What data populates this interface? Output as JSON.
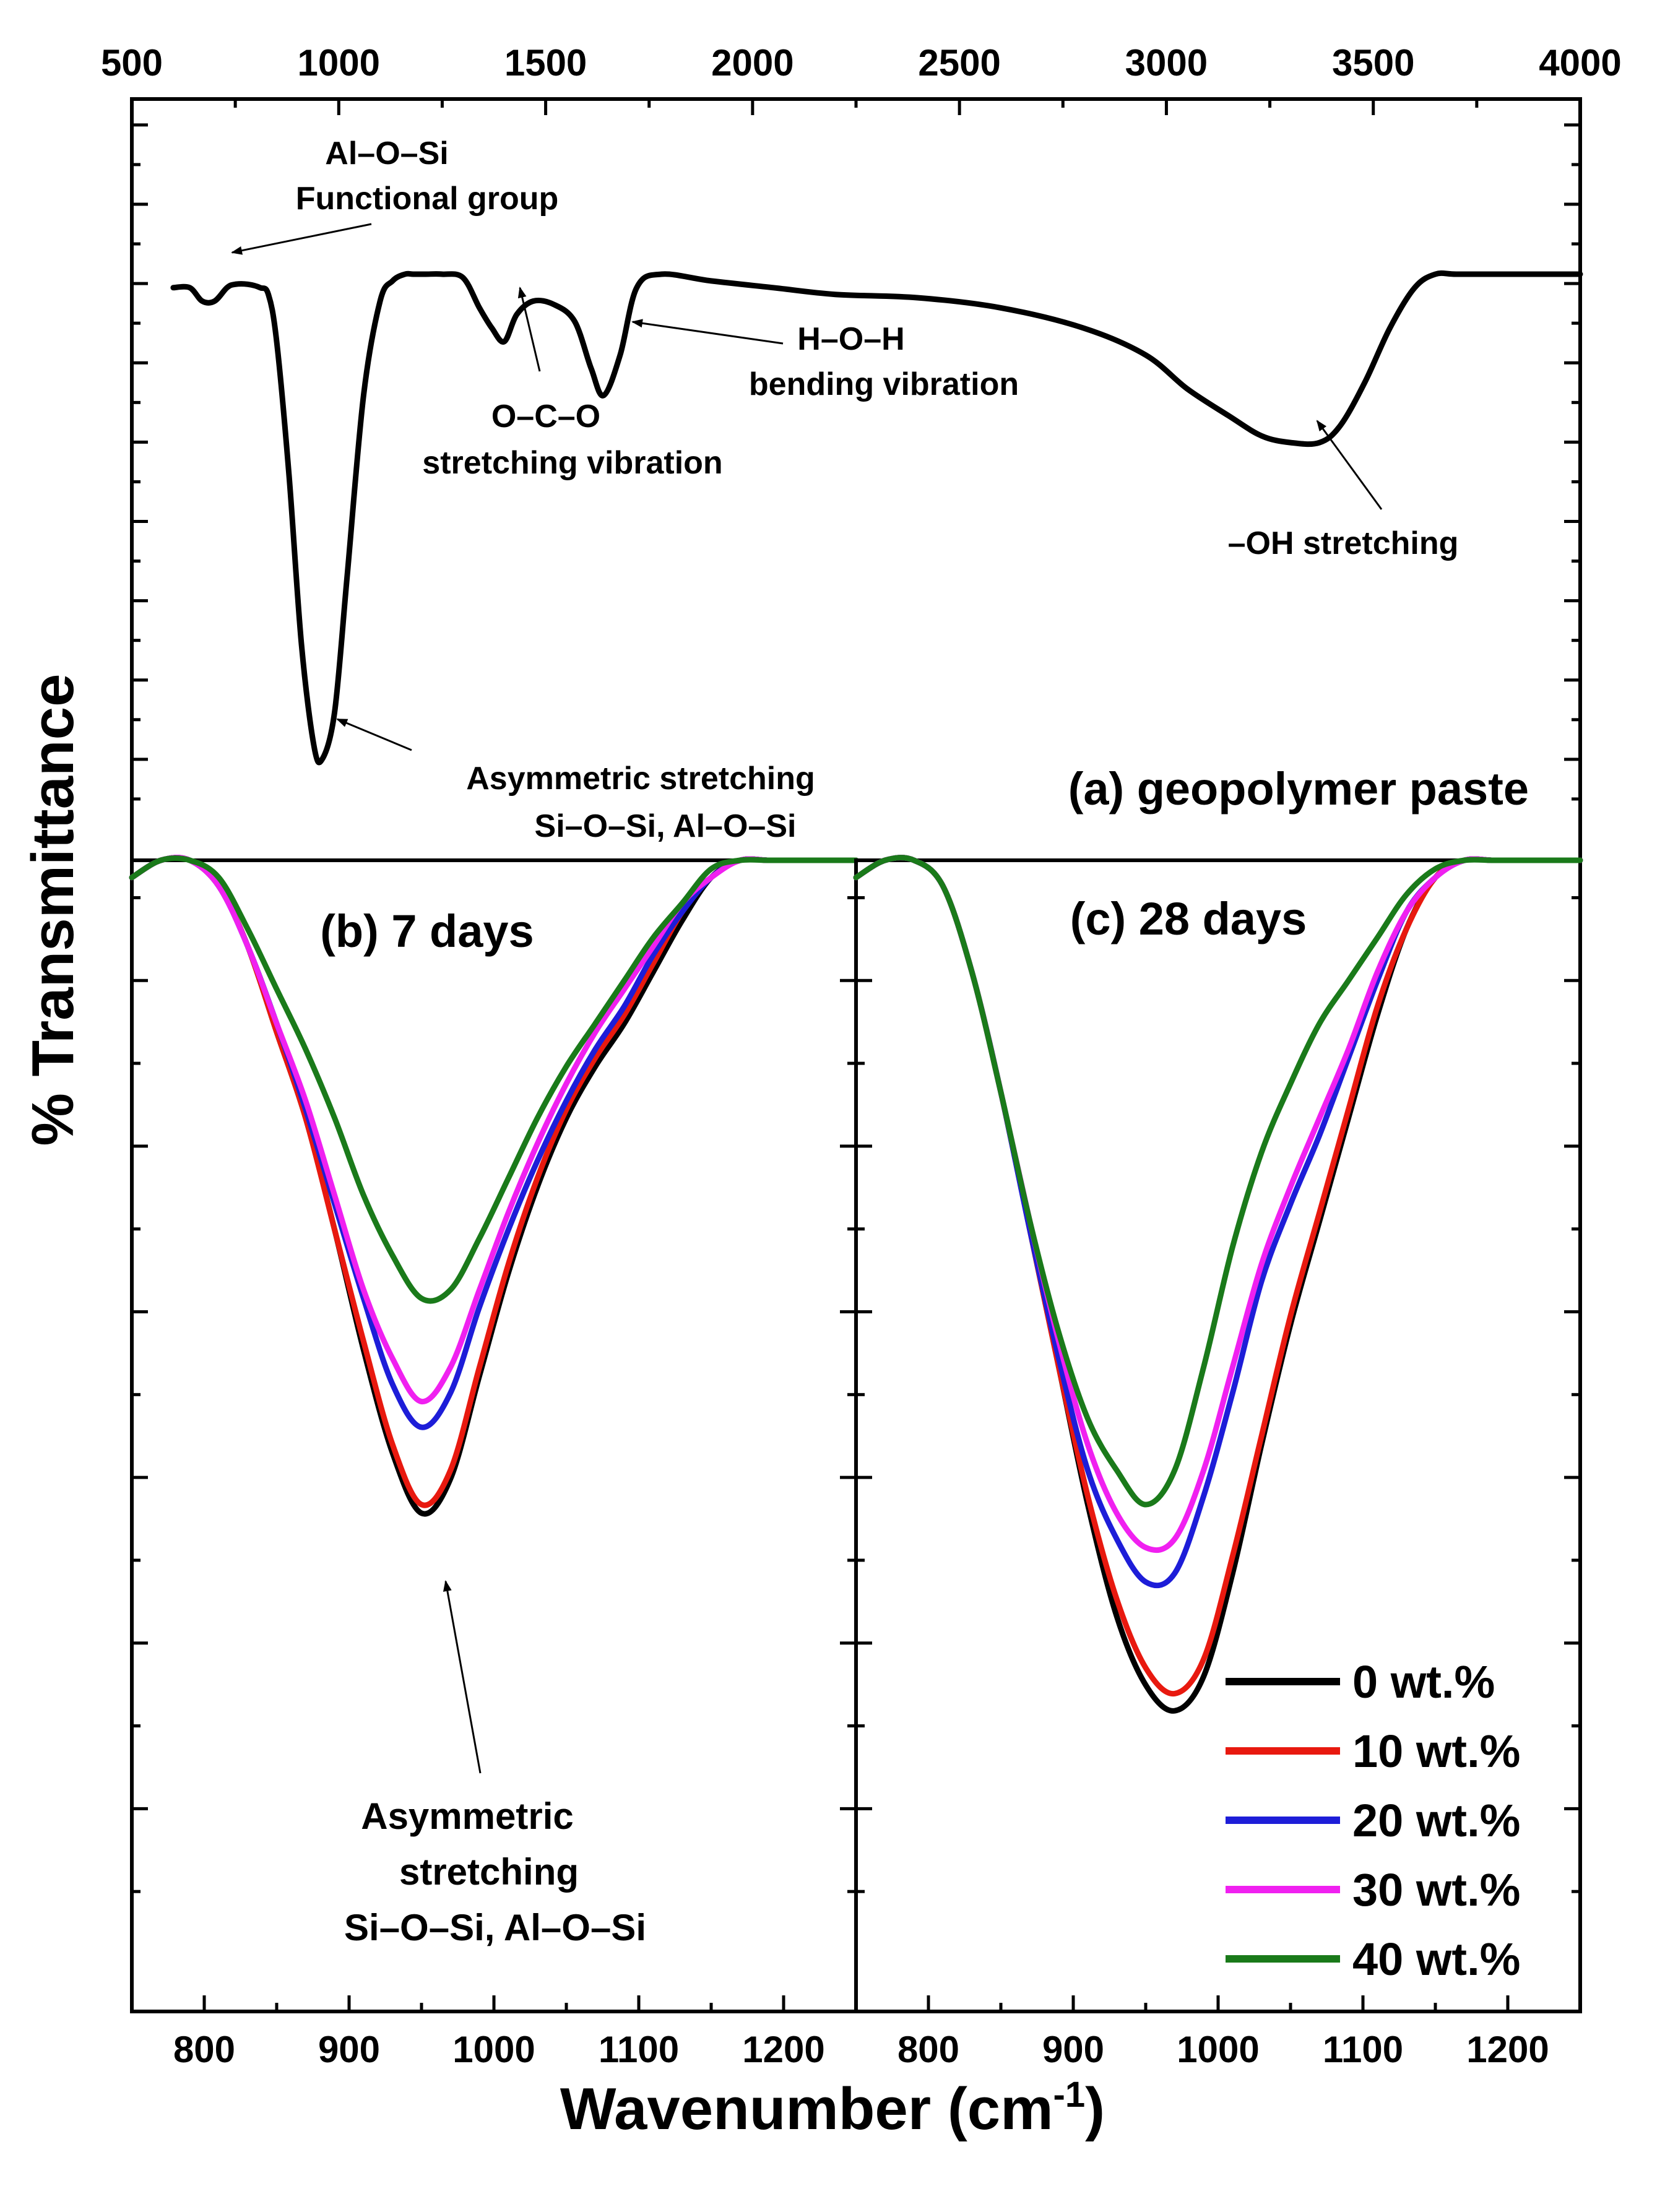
{
  "figure": {
    "y_axis_title": "% Transmittance",
    "x_axis_title_main": "Wavenumber (cm",
    "x_axis_title_sup": "-1",
    "x_axis_title_close": ")"
  },
  "chart_data": [
    {
      "id": "a",
      "type": "line",
      "title": "(a) geopolymer paste",
      "xlabel": "Wavenumber (cm-1)",
      "ylabel": "% Transmittance",
      "xlim": [
        500,
        4000
      ],
      "ylim": [
        0,
        100
      ],
      "x_ticks": [
        500,
        1000,
        1500,
        2000,
        2500,
        3000,
        3500,
        4000
      ],
      "x_tick_labels": [
        "500",
        "1000",
        "1500",
        "2000",
        "2500",
        "3000",
        "3500",
        "4000"
      ],
      "series": [
        {
          "name": "geopolymer paste",
          "color": "#000000",
          "x": [
            600,
            640,
            670,
            700,
            730,
            750,
            780,
            810,
            830,
            850,
            880,
            910,
            940,
            960,
            990,
            1020,
            1060,
            1100,
            1130,
            1160,
            1180,
            1210,
            1250,
            1300,
            1340,
            1370,
            1400,
            1430,
            1470,
            1520,
            1570,
            1610,
            1640,
            1680,
            1720,
            1780,
            1900,
            2050,
            2200,
            2400,
            2600,
            2800,
            2950,
            3050,
            3150,
            3230,
            3300,
            3370,
            3420,
            3480,
            3540,
            3600,
            3650,
            3700,
            3800,
            4000
          ],
          "y": [
            78,
            78,
            76,
            76,
            78,
            78.5,
            78.5,
            78,
            77,
            70,
            50,
            25,
            10,
            8,
            15,
            35,
            62,
            76,
            79,
            80,
            80,
            80,
            80,
            79.5,
            75,
            72,
            70,
            74,
            76,
            75.5,
            73,
            66,
            62,
            68,
            78,
            80,
            79,
            78,
            77,
            76.5,
            75,
            72,
            68,
            63,
            59,
            56,
            55,
            55,
            57.5,
            64,
            72,
            78,
            80,
            80,
            80,
            80
          ]
        }
      ],
      "annotations": [
        {
          "line1": "Al–O–Si",
          "line2": "Functional group",
          "target_x": 750
        },
        {
          "line1": "O–C–O",
          "line2": "stretching vibration",
          "target_x": 1400
        },
        {
          "line1": "H–O–H",
          "line2": "bending vibration",
          "target_x": 1640
        },
        {
          "line1": "–OH stretching",
          "target_x": 3370
        },
        {
          "line1": "Asymmetric stretching",
          "line2": "Si–O–Si, Al–O–Si",
          "target_x": 960
        }
      ]
    },
    {
      "id": "b",
      "type": "line",
      "title": "(b) 7 days",
      "xlabel": "Wavenumber (cm-1)",
      "ylabel": "% Transmittance",
      "xlim": [
        750,
        1250
      ],
      "ylim": [
        0,
        100
      ],
      "x_ticks": [
        800,
        900,
        1000,
        1100,
        1200
      ],
      "x_tick_labels": [
        "800",
        "900",
        "1000",
        "1100",
        "1200"
      ],
      "x": [
        750,
        770,
        790,
        810,
        830,
        850,
        870,
        890,
        910,
        930,
        950,
        970,
        990,
        1010,
        1030,
        1050,
        1070,
        1090,
        1110,
        1130,
        1150,
        1170,
        1190,
        1210,
        1230,
        1250
      ],
      "series": [
        {
          "name": "0 wt.%",
          "color": "#000000",
          "y": [
            98,
            100,
            100,
            97,
            90,
            80,
            70,
            57,
            43,
            31,
            24,
            28,
            40,
            52,
            62,
            70,
            76,
            81,
            87,
            93,
            98,
            100,
            100,
            100,
            100,
            100
          ]
        },
        {
          "name": "10 wt.%",
          "color": "#e8190f",
          "y": [
            98,
            100,
            100,
            97,
            90,
            80,
            70,
            57,
            44,
            32,
            25,
            29,
            41,
            53,
            63,
            71,
            77,
            82,
            88,
            94,
            98,
            100,
            100,
            100,
            100,
            100
          ]
        },
        {
          "name": "20 wt.%",
          "color": "#1d1dd8",
          "y": [
            98,
            100,
            100,
            97,
            90,
            81,
            71,
            60,
            49,
            39,
            34,
            38,
            48,
            57,
            65,
            72,
            78,
            83,
            89,
            94,
            98,
            100,
            100,
            100,
            100,
            100
          ]
        },
        {
          "name": "30 wt.%",
          "color": "#f020f0",
          "y": [
            98,
            100,
            100,
            97,
            90,
            81,
            72,
            61,
            50,
            42,
            37,
            41,
            50,
            59,
            67,
            74,
            80,
            85,
            90,
            95,
            98,
            100,
            100,
            100,
            100,
            100
          ]
        },
        {
          "name": "40 wt.%",
          "color": "#1a7a1a",
          "y": [
            98,
            100,
            100,
            98,
            92,
            85,
            78,
            70,
            61,
            54,
            49,
            50,
            56,
            63,
            70,
            76,
            81,
            86,
            91,
            95,
            99,
            100,
            100,
            100,
            100,
            100
          ]
        }
      ],
      "annotations": [
        {
          "line1": "Asymmetric",
          "line2": "stretching",
          "line3": "Si–O–Si, Al–O–Si",
          "target_x": 955
        }
      ]
    },
    {
      "id": "c",
      "type": "line",
      "title": "(c) 28 days",
      "xlabel": "Wavenumber (cm-1)",
      "ylabel": "% Transmittance",
      "xlim": [
        750,
        1250
      ],
      "ylim": [
        0,
        100
      ],
      "x_ticks": [
        800,
        900,
        1000,
        1100,
        1200
      ],
      "x_tick_labels": [
        "800",
        "900",
        "1000",
        "1100",
        "1200"
      ],
      "x": [
        750,
        770,
        790,
        810,
        830,
        850,
        870,
        890,
        910,
        930,
        950,
        970,
        990,
        1010,
        1030,
        1050,
        1070,
        1090,
        1110,
        1130,
        1150,
        1170,
        1190,
        1210,
        1230,
        1250
      ],
      "series": [
        {
          "name": "0 wt.%",
          "color": "#000000",
          "y": [
            98,
            100,
            100,
            97,
            87,
            73,
            57,
            41,
            25,
            12,
            4,
            1,
            5,
            17,
            32,
            46,
            58,
            70,
            82,
            92,
            98,
            100,
            100,
            100,
            100,
            100
          ]
        },
        {
          "name": "10 wt.%",
          "color": "#e8190f",
          "y": [
            98,
            100,
            100,
            97,
            87,
            73,
            57,
            41,
            26,
            14,
            6,
            3,
            7,
            19,
            33,
            47,
            59,
            71,
            83,
            92,
            98,
            100,
            100,
            100,
            100,
            100
          ]
        },
        {
          "name": "20 wt.%",
          "color": "#1d1dd8",
          "y": [
            98,
            100,
            100,
            97,
            87,
            73,
            57,
            42,
            29,
            21,
            16,
            17,
            26,
            38,
            51,
            60,
            68,
            77,
            86,
            94,
            98,
            100,
            100,
            100,
            100,
            100
          ]
        },
        {
          "name": "30 wt.%",
          "color": "#f020f0",
          "y": [
            98,
            100,
            100,
            97,
            87,
            73,
            58,
            44,
            32,
            24,
            20,
            21,
            29,
            41,
            53,
            62,
            70,
            78,
            87,
            94,
            98,
            100,
            100,
            100,
            100,
            100
          ]
        },
        {
          "name": "40 wt.%",
          "color": "#1a7a1a",
          "y": [
            98,
            100,
            100,
            97,
            87,
            73,
            58,
            45,
            35,
            29,
            25,
            29,
            41,
            55,
            66,
            74,
            81,
            86,
            91,
            96,
            99,
            100,
            100,
            100,
            100,
            100
          ]
        }
      ],
      "legend": {
        "position": "bottom-right",
        "entries": [
          {
            "label": "0 wt.%",
            "color": "#000000"
          },
          {
            "label": "10 wt.%",
            "color": "#e8190f"
          },
          {
            "label": "20 wt.%",
            "color": "#1d1dd8"
          },
          {
            "label": "30 wt.%",
            "color": "#f020f0"
          },
          {
            "label": "40 wt.%",
            "color": "#1a7a1a"
          }
        ]
      }
    }
  ]
}
